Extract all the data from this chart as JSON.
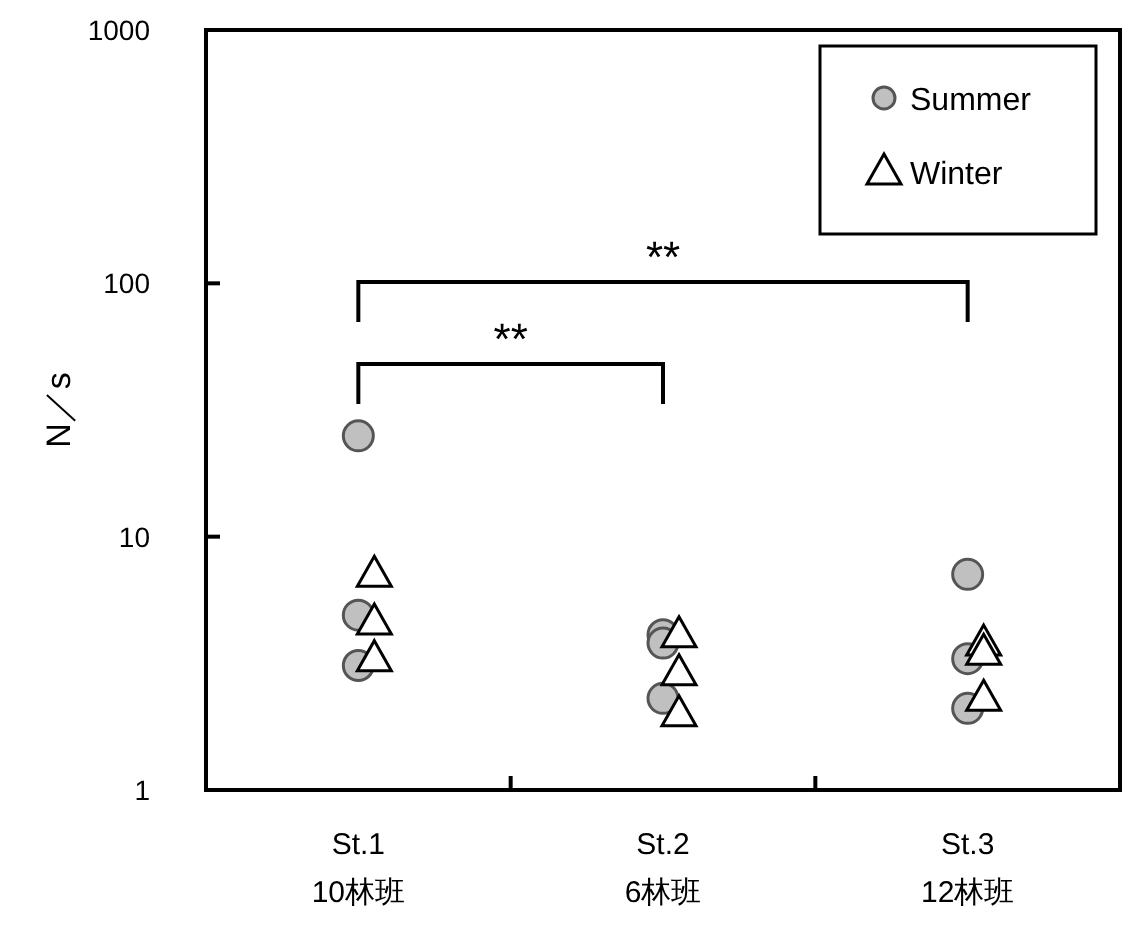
{
  "chart_data": {
    "type": "scatter",
    "ylabel": "N／s",
    "categories": [
      "St.1\n10林班",
      "St.2\n6林班",
      "St.3\n12林班"
    ],
    "log": "y",
    "ylim": [
      1,
      1000
    ],
    "yticks": [
      1,
      10,
      100,
      1000
    ],
    "grid": false,
    "legend": "top right",
    "series": [
      {
        "name": "Summer",
        "color": "#c0c0c0",
        "marker": "circle",
        "x": [
          "St.1\n10林班",
          "St.1\n10林班",
          "St.1\n10林班",
          "St.2\n6林班",
          "St.2\n6林班",
          "St.2\n6林班",
          "St.3\n12林班",
          "St.3\n12林班",
          "St.3\n12林班"
        ],
        "values": [
          25,
          4.9,
          3.1,
          4.1,
          3.8,
          2.3,
          7.1,
          3.3,
          2.1
        ]
      },
      {
        "name": "Winter",
        "color": "#ffffff",
        "marker": "triangle",
        "x": [
          "St.1\n10林班",
          "St.1\n10林班",
          "St.1\n10林班",
          "St.2\n6林班",
          "St.2\n6林班",
          "St.2\n6林班",
          "St.3\n12林班",
          "St.3\n12林班",
          "St.3\n12林班"
        ],
        "values": [
          7.1,
          4.6,
          3.3,
          4.1,
          2.9,
          2.0,
          3.8,
          3.5,
          2.3
        ]
      }
    ],
    "annotations": [
      "**",
      "**"
    ]
  }
}
